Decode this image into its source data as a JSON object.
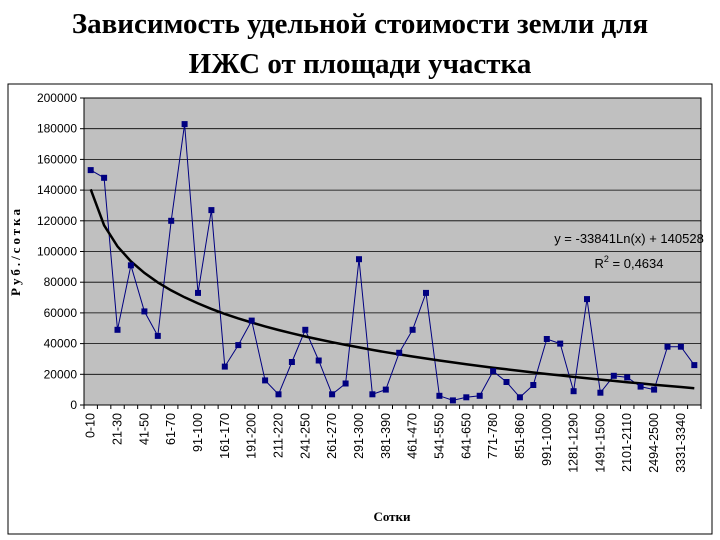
{
  "slide": {
    "title_line1": "Зависимость удельной стоимости земли для",
    "title_line2": "ИЖС от площади участка"
  },
  "chart_data": {
    "type": "scatter",
    "xlabel": "Сотки",
    "ylabel": "Руб./сотка",
    "ylim": [
      0,
      200000
    ],
    "y_ticks": [
      0,
      20000,
      40000,
      60000,
      80000,
      100000,
      120000,
      140000,
      160000,
      180000,
      200000
    ],
    "x_tick_labels": [
      "0-10",
      "21-30",
      "41-50",
      "61-70",
      "91-100",
      "161-170",
      "191-200",
      "211-220",
      "241-250",
      "261-270",
      "291-300",
      "381-390",
      "461-470",
      "541-550",
      "641-650",
      "771-780",
      "851-860",
      "991-1000",
      "1281-1290",
      "1491-1500",
      "2101-2110",
      "2494-2500",
      "3331-3340"
    ],
    "series": [
      {
        "values": [
          153000,
          148000,
          49000,
          91000,
          61000,
          45000,
          120000,
          183000,
          73000,
          127000,
          25000,
          39000,
          55000,
          16000,
          7000,
          28000,
          49000,
          29000,
          7000,
          14000,
          95000,
          7000,
          10000,
          34000,
          49000,
          73000,
          6000,
          3000,
          5000,
          6000,
          22000,
          15000,
          5000,
          13000,
          43000,
          40000,
          9000,
          69000,
          8000,
          19000,
          18000,
          12000,
          10000,
          38000,
          38000,
          26000
        ]
      }
    ],
    "trendline": {
      "type": "logarithmic",
      "equation": "y = -33841Ln(x) + 140528",
      "r2_label": "R",
      "r2_sup": "2",
      "r2_value": " = 0,4634",
      "a": -33841,
      "b": 140528
    },
    "grid": true,
    "legend": "none",
    "colors": {
      "plot_bg": "#c0c0c0",
      "series": "#000080",
      "trend": "#000000",
      "grid": "#000000"
    }
  }
}
